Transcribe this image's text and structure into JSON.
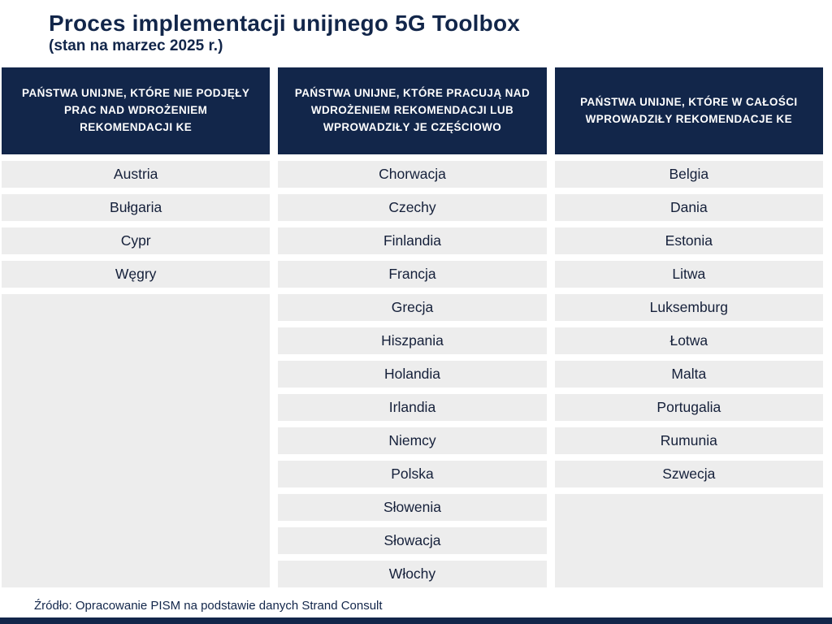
{
  "title": "Proces implementacji unijnego 5G Toolbox",
  "subtitle": "(stan na marzec 2025 r.)",
  "source": "Źródło: Opracowanie PISM na podstawie danych Strand Consult",
  "colors": {
    "navy": "#12264a",
    "row_bg": "#ededed",
    "row_text": "#15203a"
  },
  "chart_data": {
    "type": "table",
    "title": "Proces implementacji unijnego 5G Toolbox (stan na marzec 2025 r.)",
    "columns": [
      {
        "header": "PAŃSTWA UNIJNE, KTÓRE NIE PODJĘŁY PRAC NAD WDROŻENIEM REKOMENDACJI KE",
        "countries": [
          "Austria",
          "Bułgaria",
          "Cypr",
          "Węgry"
        ]
      },
      {
        "header": "PAŃSTWA UNIJNE, KTÓRE PRACUJĄ NAD WDROŻENIEM REKOMENDACJI LUB WPROWADZIŁY JE CZĘŚCIOWO",
        "countries": [
          "Chorwacja",
          "Czechy",
          "Finlandia",
          "Francja",
          "Grecja",
          "Hiszpania",
          "Holandia",
          "Irlandia",
          "Niemcy",
          "Polska",
          "Słowenia",
          "Słowacja",
          "Włochy"
        ]
      },
      {
        "header": "PAŃSTWA UNIJNE, KTÓRE W CAŁOŚCI WPROWADZIŁY REKOMENDACJE KE",
        "countries": [
          "Belgia",
          "Dania",
          "Estonia",
          "Litwa",
          "Luksemburg",
          "Łotwa",
          "Malta",
          "Portugalia",
          "Rumunia",
          "Szwecja"
        ]
      }
    ],
    "max_rows": 13
  }
}
